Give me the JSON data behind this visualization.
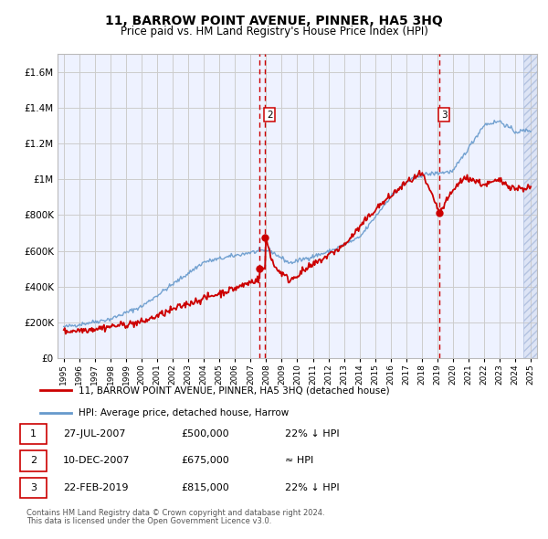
{
  "title": "11, BARROW POINT AVENUE, PINNER, HA5 3HQ",
  "subtitle": "Price paid vs. HM Land Registry's House Price Index (HPI)",
  "legend_line1": "11, BARROW POINT AVENUE, PINNER, HA5 3HQ (detached house)",
  "legend_line2": "HPI: Average price, detached house, Harrow",
  "footer1": "Contains HM Land Registry data © Crown copyright and database right 2024.",
  "footer2": "This data is licensed under the Open Government Licence v3.0.",
  "transactions": [
    {
      "num": 1,
      "date": "27-JUL-2007",
      "price": "£500,000",
      "rel": "22% ↓ HPI",
      "year": 2007.57,
      "value": 500000
    },
    {
      "num": 2,
      "date": "10-DEC-2007",
      "price": "£675,000",
      "rel": "≈ HPI",
      "year": 2007.94,
      "value": 675000
    },
    {
      "num": 3,
      "date": "22-FEB-2019",
      "price": "£815,000",
      "rel": "22% ↓ HPI",
      "year": 2019.14,
      "value": 815000
    }
  ],
  "red_line_color": "#cc0000",
  "blue_line_color": "#6699cc",
  "dashed_line_color": "#cc0000",
  "grid_color": "#cccccc",
  "plot_bg_color": "#eef2ff",
  "hatch_bg_color": "#dde4f5",
  "ylim": [
    0,
    1700000
  ],
  "yticks": [
    0,
    200000,
    400000,
    600000,
    800000,
    1000000,
    1200000,
    1400000,
    1600000
  ],
  "xlim_start": 1994.6,
  "xlim_end": 2025.4,
  "xticks": [
    1995,
    1996,
    1997,
    1998,
    1999,
    2000,
    2001,
    2002,
    2003,
    2004,
    2005,
    2006,
    2007,
    2008,
    2009,
    2010,
    2011,
    2012,
    2013,
    2014,
    2015,
    2016,
    2017,
    2018,
    2019,
    2020,
    2021,
    2022,
    2023,
    2024,
    2025
  ]
}
